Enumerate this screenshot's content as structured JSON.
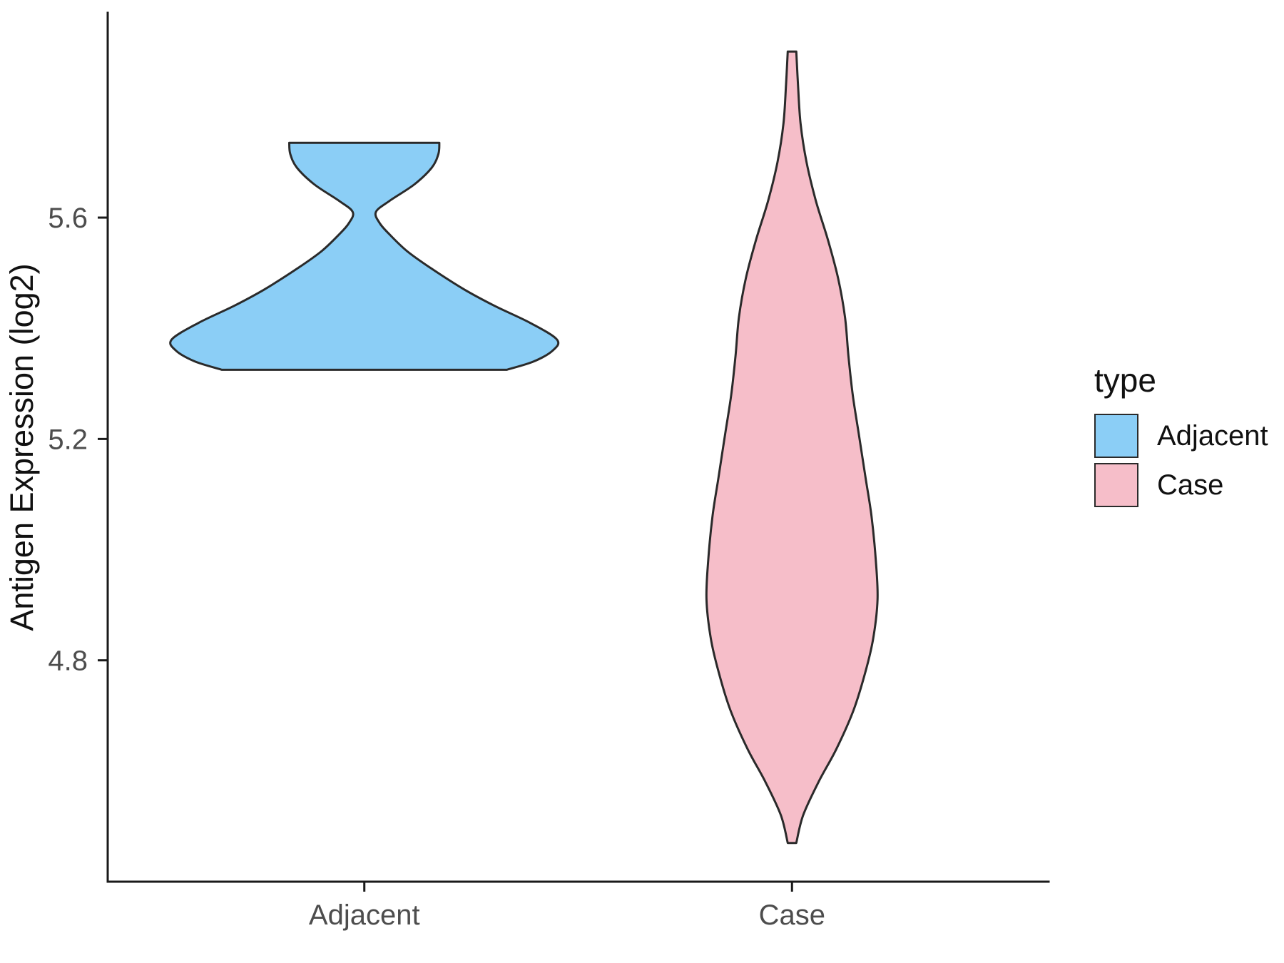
{
  "chart_data": {
    "type": "violin",
    "title": "",
    "xlabel": "",
    "ylabel": "Antigen Expression (log2)",
    "categories": [
      "Adjacent",
      "Case"
    ],
    "y_ticks": [
      4.8,
      5.2,
      5.6
    ],
    "ylim": [
      4.4,
      5.97
    ],
    "grid": "off",
    "legend": {
      "title": "type",
      "position": "right",
      "entries": [
        {
          "label": "Adjacent",
          "color": "#8BCEF6"
        },
        {
          "label": "Case",
          "color": "#F6BEC9"
        }
      ]
    },
    "style": {
      "outline_color": "#2a2a2a",
      "outline_width": 3,
      "axis_color": "#1a1a1a",
      "tick_label_color": "#4d4d4d",
      "background": "#ffffff"
    },
    "series": [
      {
        "name": "Adjacent",
        "category": "Adjacent",
        "fill": "#8BCEF6",
        "max_halfwidth": 0.45,
        "y_range": [
          5.325,
          5.735
        ],
        "profile": [
          [
            5.735,
            0.39
          ],
          [
            5.715,
            0.385
          ],
          [
            5.69,
            0.35
          ],
          [
            5.66,
            0.26
          ],
          [
            5.63,
            0.13
          ],
          [
            5.61,
            0.06
          ],
          [
            5.59,
            0.08
          ],
          [
            5.57,
            0.13
          ],
          [
            5.54,
            0.22
          ],
          [
            5.51,
            0.34
          ],
          [
            5.47,
            0.52
          ],
          [
            5.44,
            0.68
          ],
          [
            5.41,
            0.86
          ],
          [
            5.38,
            1.0
          ],
          [
            5.36,
            0.98
          ],
          [
            5.34,
            0.88
          ],
          [
            5.325,
            0.74
          ]
        ]
      },
      {
        "name": "Case",
        "category": "Case",
        "fill": "#F6BEC9",
        "max_halfwidth": 0.2,
        "y_range": [
          4.47,
          5.9
        ],
        "profile": [
          [
            5.9,
            0.05
          ],
          [
            5.84,
            0.07
          ],
          [
            5.77,
            0.1
          ],
          [
            5.7,
            0.17
          ],
          [
            5.63,
            0.28
          ],
          [
            5.56,
            0.42
          ],
          [
            5.49,
            0.54
          ],
          [
            5.42,
            0.62
          ],
          [
            5.35,
            0.66
          ],
          [
            5.28,
            0.71
          ],
          [
            5.21,
            0.78
          ],
          [
            5.13,
            0.86
          ],
          [
            5.06,
            0.93
          ],
          [
            4.98,
            0.98
          ],
          [
            4.91,
            1.0
          ],
          [
            4.84,
            0.95
          ],
          [
            4.78,
            0.86
          ],
          [
            4.71,
            0.72
          ],
          [
            4.64,
            0.52
          ],
          [
            4.58,
            0.31
          ],
          [
            4.52,
            0.13
          ],
          [
            4.47,
            0.05
          ]
        ]
      }
    ]
  }
}
